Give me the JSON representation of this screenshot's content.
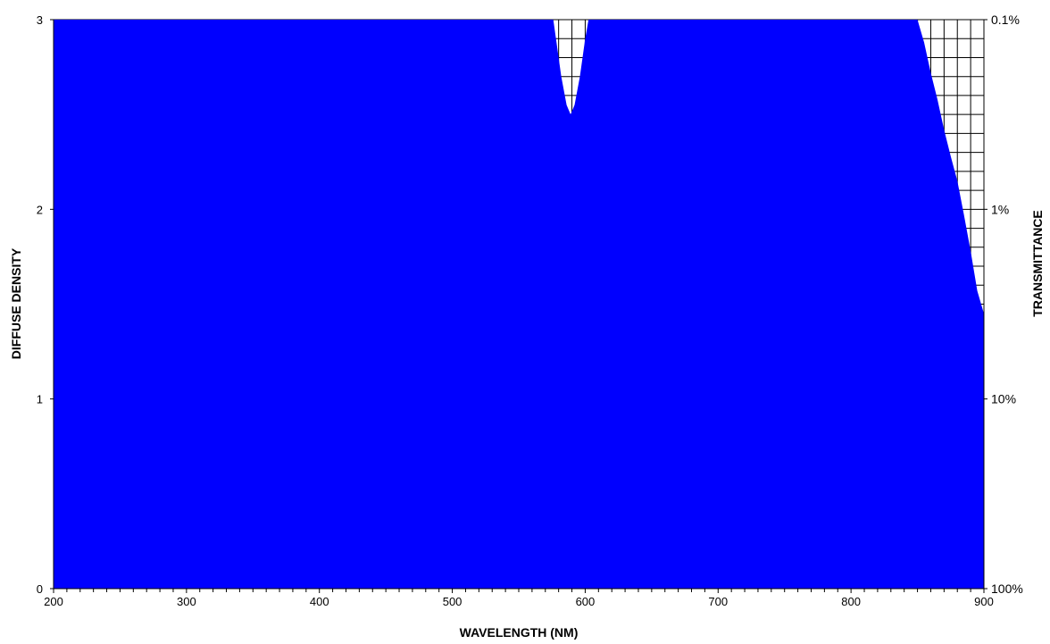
{
  "chart_data": {
    "type": "area",
    "title": "",
    "xlabel": "WAVELENGTH (NM)",
    "ylabel": "DIFFUSE DENSITY",
    "y2label": "TRANSMITTANCE",
    "xlim": [
      200,
      900
    ],
    "ylim": [
      0,
      3
    ],
    "x_ticks": [
      200,
      300,
      400,
      500,
      600,
      700,
      800,
      900
    ],
    "y_ticks": [
      0,
      1,
      2,
      3
    ],
    "y2_ticks": [
      {
        "density": 3,
        "label": "0.1%"
      },
      {
        "density": 2,
        "label": "1%"
      },
      {
        "density": 1,
        "label": "10%"
      },
      {
        "density": 0,
        "label": "100%"
      }
    ],
    "grid": "minor grid visible where curve is below the top",
    "fill_color": "#0000FF",
    "series": [
      {
        "x": [
          200,
          575,
          578,
          582,
          586,
          589,
          592,
          596,
          600,
          603,
          605,
          850,
          855,
          860,
          865,
          870,
          875,
          880,
          885,
          890,
          895,
          900
        ],
        "y": [
          3.05,
          3.05,
          2.9,
          2.7,
          2.55,
          2.5,
          2.55,
          2.7,
          2.9,
          3.02,
          3.05,
          3.0,
          2.88,
          2.72,
          2.58,
          2.42,
          2.28,
          2.15,
          1.97,
          1.78,
          1.57,
          1.45
        ]
      }
    ]
  }
}
